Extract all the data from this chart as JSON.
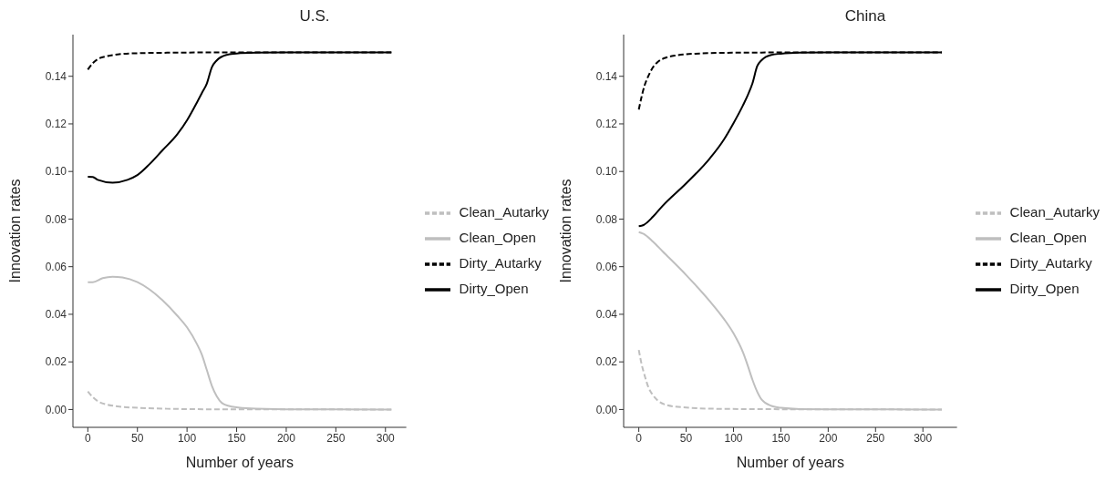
{
  "chart_data": [
    {
      "type": "line",
      "title": "U.S.",
      "xlabel": "Number of years",
      "ylabel": "Innovation rates",
      "xlim": [
        -15,
        321
      ],
      "xticks": [
        0,
        50,
        100,
        150,
        200,
        250,
        300
      ],
      "ylim": [
        -0.0075,
        0.1575
      ],
      "yticks": [
        {
          "value": 0,
          "label": "0.00"
        },
        {
          "value": 0.02,
          "label": "0.02"
        },
        {
          "value": 0.04,
          "label": "0.04"
        },
        {
          "value": 0.06,
          "label": "0.06"
        },
        {
          "value": 0.08,
          "label": "0.08"
        },
        {
          "value": 0.1,
          "label": "0.10"
        },
        {
          "value": 0.12,
          "label": "0.12"
        },
        {
          "value": 0.14,
          "label": "0.14"
        }
      ],
      "grid": false,
      "legend": "right",
      "marker": "none",
      "series": [
        {
          "name": "Dirty_Open",
          "color": "#000000",
          "line_style": "solid",
          "x": [
            0,
            5,
            10,
            25,
            40,
            50,
            62,
            75,
            90,
            100,
            110,
            115,
            120,
            125,
            130,
            140,
            150,
            170,
            200,
            306
          ],
          "values": [
            0.0978,
            0.0977,
            0.0965,
            0.0953,
            0.0965,
            0.0985,
            0.103,
            0.1088,
            0.1155,
            0.1215,
            0.129,
            0.133,
            0.137,
            0.1438,
            0.1467,
            0.149,
            0.1496,
            0.1499,
            0.15,
            0.15
          ]
        },
        {
          "name": "Clean_Open",
          "color": "#bfbfbf",
          "line_style": "solid",
          "x": [
            0,
            5,
            15,
            25,
            35,
            50,
            62,
            75,
            90,
            100,
            110,
            115,
            120,
            125,
            130,
            135,
            145,
            160,
            200,
            306
          ],
          "values": [
            0.0535,
            0.0535,
            0.0552,
            0.0558,
            0.0555,
            0.0535,
            0.0505,
            0.046,
            0.0395,
            0.0345,
            0.0275,
            0.023,
            0.0165,
            0.01,
            0.0055,
            0.0028,
            0.0012,
            0.0005,
            0.0001,
            0
          ]
        },
        {
          "name": "Dirty_Autarky",
          "color": "#000000",
          "line_style": "dashed",
          "x": [
            0,
            5,
            10,
            20,
            30,
            50,
            80,
            120,
            306
          ],
          "values": [
            0.1428,
            0.1455,
            0.1472,
            0.1485,
            0.1492,
            0.1497,
            0.1499,
            0.15,
            0.15
          ]
        },
        {
          "name": "Clean_Autarky",
          "color": "#bfbfbf",
          "line_style": "dashed",
          "x": [
            0,
            5,
            10,
            20,
            30,
            50,
            80,
            120,
            306
          ],
          "values": [
            0.0076,
            0.0052,
            0.0035,
            0.002,
            0.0013,
            0.0007,
            0.0003,
            0.0001,
            0
          ]
        }
      ]
    },
    {
      "type": "line",
      "title": "China",
      "xlabel": "Number of years",
      "ylabel": "Innovation rates",
      "xlim": [
        -16,
        336
      ],
      "xticks": [
        0,
        50,
        100,
        150,
        200,
        250,
        300
      ],
      "ylim": [
        -0.0075,
        0.1575
      ],
      "yticks": [
        {
          "value": 0,
          "label": "0.00"
        },
        {
          "value": 0.02,
          "label": "0.02"
        },
        {
          "value": 0.04,
          "label": "0.04"
        },
        {
          "value": 0.06,
          "label": "0.06"
        },
        {
          "value": 0.08,
          "label": "0.08"
        },
        {
          "value": 0.1,
          "label": "0.10"
        },
        {
          "value": 0.12,
          "label": "0.12"
        },
        {
          "value": 0.14,
          "label": "0.14"
        }
      ],
      "grid": false,
      "legend": "right",
      "marker": "none",
      "series": [
        {
          "name": "Dirty_Open",
          "color": "#000000",
          "line_style": "solid",
          "x": [
            0,
            5,
            15,
            25,
            50,
            75,
            90,
            100,
            110,
            115,
            120,
            125,
            130,
            140,
            150,
            170,
            200,
            320
          ],
          "values": [
            0.077,
            0.0775,
            0.081,
            0.0855,
            0.095,
            0.1055,
            0.1135,
            0.1203,
            0.1278,
            0.132,
            0.137,
            0.1442,
            0.1469,
            0.149,
            0.1495,
            0.1499,
            0.15,
            0.15
          ]
        },
        {
          "name": "Clean_Open",
          "color": "#bfbfbf",
          "line_style": "solid",
          "x": [
            0,
            5,
            15,
            25,
            50,
            75,
            90,
            100,
            110,
            115,
            120,
            125,
            130,
            140,
            150,
            170,
            200,
            320
          ],
          "values": [
            0.0745,
            0.0738,
            0.0705,
            0.0665,
            0.0565,
            0.0455,
            0.038,
            0.032,
            0.024,
            0.0185,
            0.0125,
            0.0075,
            0.004,
            0.0015,
            0.0007,
            0.0002,
            0.0001,
            0
          ]
        },
        {
          "name": "Dirty_Autarky",
          "color": "#000000",
          "line_style": "dashed",
          "x": [
            0,
            3,
            6,
            10,
            15,
            20,
            30,
            40,
            60,
            100,
            150,
            320
          ],
          "values": [
            0.126,
            0.1315,
            0.136,
            0.14,
            0.1438,
            0.146,
            0.148,
            0.1488,
            0.1495,
            0.1499,
            0.15,
            0.15
          ]
        },
        {
          "name": "Clean_Autarky",
          "color": "#bfbfbf",
          "line_style": "dashed",
          "x": [
            0,
            3,
            6,
            10,
            15,
            20,
            30,
            50,
            80,
            150,
            320
          ],
          "values": [
            0.025,
            0.019,
            0.0145,
            0.0095,
            0.006,
            0.0038,
            0.0018,
            0.0008,
            0.0003,
            0.0001,
            0
          ]
        }
      ]
    }
  ]
}
